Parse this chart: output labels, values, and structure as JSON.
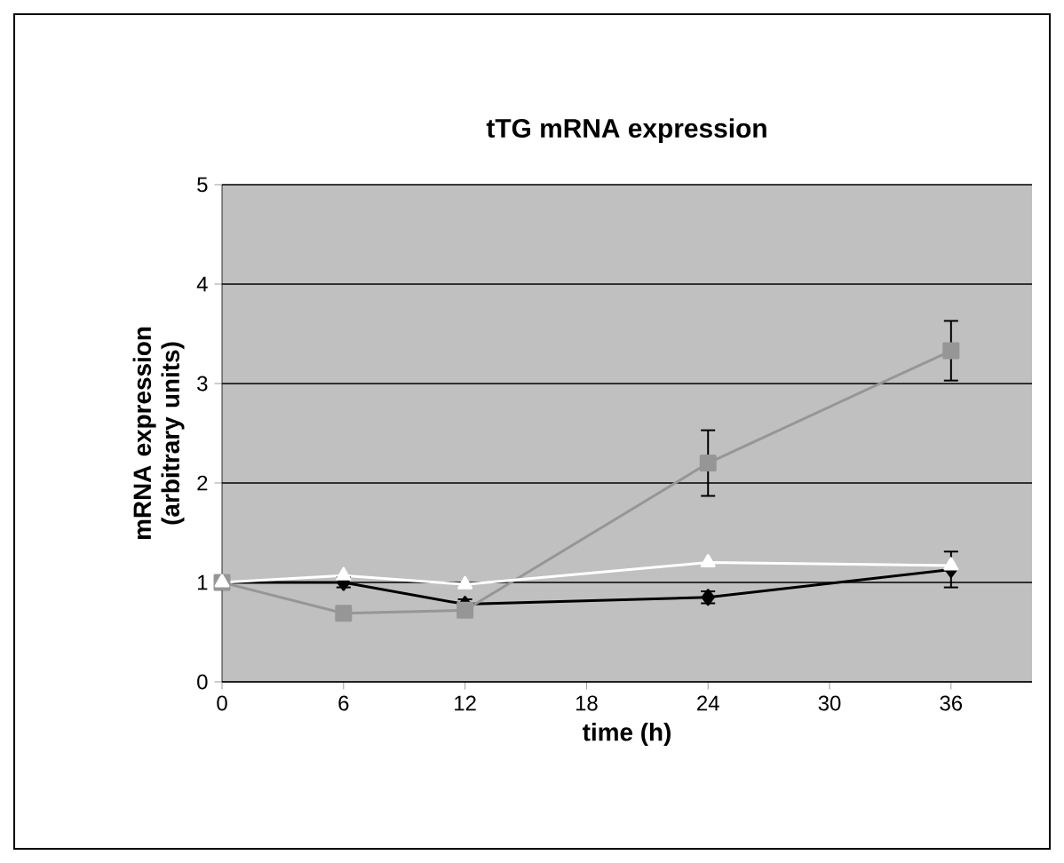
{
  "chart_data": {
    "type": "line",
    "title": "tTG mRNA expression",
    "xlabel": "time (h)",
    "ylabel": "mRNA expression (arbitrary units)",
    "xlim": [
      0,
      40
    ],
    "xticks": [
      0,
      6,
      12,
      18,
      24,
      30,
      36
    ],
    "ylim": [
      0,
      5
    ],
    "yticks": [
      0,
      1,
      2,
      3,
      4,
      5
    ],
    "grid": "y",
    "series": [
      {
        "color": "#000000",
        "marker": "diamond",
        "x": [
          0,
          6,
          12,
          24,
          36
        ],
        "values": [
          1,
          1.0,
          0.78,
          0.85,
          1.13
        ],
        "errors": [
          null,
          0.05,
          0.05,
          0.06,
          0.18
        ]
      },
      {
        "color": "#969696",
        "marker": "square",
        "x": [
          0,
          6,
          12,
          24,
          36
        ],
        "values": [
          1,
          0.69,
          0.72,
          2.2,
          3.33
        ],
        "errors": [
          null,
          null,
          null,
          0.33,
          0.3
        ]
      },
      {
        "color": "#ffffff",
        "marker": "triangle",
        "x": [
          0,
          6,
          12,
          24,
          36
        ],
        "values": [
          1,
          1.07,
          0.98,
          1.2,
          1.17
        ]
      }
    ]
  }
}
